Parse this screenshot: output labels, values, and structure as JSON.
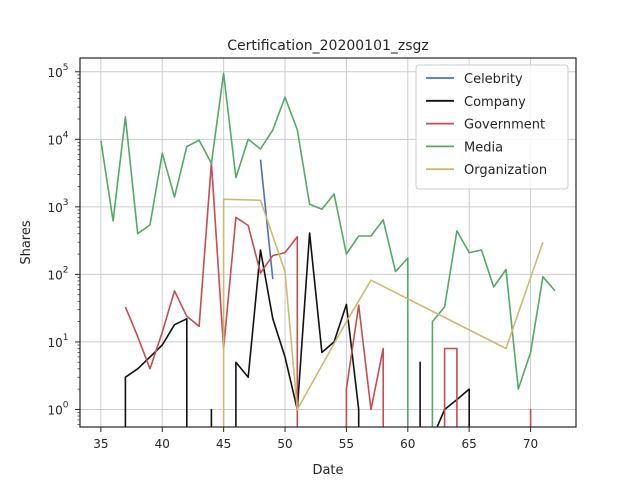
{
  "chart_data": {
    "type": "line",
    "title": "Certification_20200101_zsgz",
    "xlabel": "Date",
    "ylabel": "Shares",
    "xlim": [
      33.3,
      73.7
    ],
    "ylim": [
      0.55,
      160000
    ],
    "yscale": "log",
    "grid": true,
    "legend_position": "top-right",
    "x_ticks": [
      35,
      40,
      45,
      50,
      55,
      60,
      65,
      70
    ],
    "y_ticks": [
      {
        "value": 1,
        "base": "10",
        "exp": "0"
      },
      {
        "value": 10,
        "base": "10",
        "exp": "1"
      },
      {
        "value": 100,
        "base": "10",
        "exp": "2"
      },
      {
        "value": 1000,
        "base": "10",
        "exp": "3"
      },
      {
        "value": 10000,
        "base": "10",
        "exp": "4"
      },
      {
        "value": 100000,
        "base": "10",
        "exp": "5"
      }
    ],
    "series": [
      {
        "name": "Celebrity",
        "color": "#4c72b0",
        "points": [
          [
            48,
            5000
          ],
          [
            49,
            85
          ]
        ]
      },
      {
        "name": "Company",
        "color": "#111111",
        "points": [
          [
            37,
            0
          ],
          [
            37,
            3
          ],
          [
            38,
            4
          ],
          [
            39,
            6
          ],
          [
            40,
            9
          ],
          [
            41,
            18
          ],
          [
            42,
            22
          ],
          [
            42,
            0
          ],
          [
            44,
            0
          ],
          [
            44,
            1
          ],
          [
            44,
            0
          ],
          [
            46,
            0
          ],
          [
            46,
            5
          ],
          [
            47,
            3
          ],
          [
            48,
            230
          ],
          [
            49,
            22
          ],
          [
            50,
            6
          ],
          [
            51,
            1
          ],
          [
            52,
            410
          ],
          [
            53,
            7
          ],
          [
            54,
            10
          ],
          [
            55,
            36
          ],
          [
            56,
            1
          ],
          [
            56,
            0
          ],
          [
            61,
            0
          ],
          [
            61,
            5
          ],
          [
            61,
            0
          ],
          [
            63,
            1
          ],
          [
            64,
            1.4
          ],
          [
            65,
            2
          ],
          [
            65,
            0
          ]
        ]
      },
      {
        "name": "Government",
        "color": "#c44e52",
        "points": [
          [
            37,
            33
          ],
          [
            38,
            12
          ],
          [
            39,
            4
          ],
          [
            40,
            14
          ],
          [
            41,
            57
          ],
          [
            42,
            24
          ],
          [
            43,
            17
          ],
          [
            44,
            4500
          ],
          [
            45,
            8
          ],
          [
            46,
            700
          ],
          [
            47,
            530
          ],
          [
            48,
            105
          ],
          [
            49,
            190
          ],
          [
            50,
            210
          ],
          [
            51,
            360
          ],
          [
            51,
            0
          ],
          [
            55,
            0
          ],
          [
            55,
            2
          ],
          [
            56,
            35
          ],
          [
            57,
            1
          ],
          [
            58,
            8
          ],
          [
            58,
            0
          ],
          [
            63,
            0
          ],
          [
            63,
            8
          ],
          [
            64,
            8
          ],
          [
            64,
            0
          ],
          [
            70,
            0
          ],
          [
            70,
            1
          ],
          [
            70,
            0
          ]
        ]
      },
      {
        "name": "Media",
        "color": "#55a868",
        "points": [
          [
            35,
            9500
          ],
          [
            36,
            620
          ],
          [
            37,
            21500
          ],
          [
            38,
            400
          ],
          [
            39,
            540
          ],
          [
            40,
            6200
          ],
          [
            41,
            1400
          ],
          [
            42,
            7800
          ],
          [
            43,
            9700
          ],
          [
            44,
            4400
          ],
          [
            45,
            95000
          ],
          [
            46,
            2700
          ],
          [
            47,
            10000
          ],
          [
            48,
            7200
          ],
          [
            49,
            13800
          ],
          [
            50,
            42000
          ],
          [
            51,
            13800
          ],
          [
            52,
            1100
          ],
          [
            53,
            920
          ],
          [
            54,
            1550
          ],
          [
            55,
            200
          ],
          [
            56,
            370
          ],
          [
            57,
            370
          ],
          [
            58,
            640
          ],
          [
            59,
            110
          ],
          [
            60,
            175
          ],
          [
            60,
            0
          ],
          [
            62,
            0
          ],
          [
            62,
            20
          ],
          [
            63,
            33
          ],
          [
            64,
            440
          ],
          [
            65,
            210
          ],
          [
            66,
            230
          ],
          [
            67,
            65
          ],
          [
            68,
            118
          ],
          [
            69,
            2
          ],
          [
            70,
            7
          ],
          [
            71,
            92
          ],
          [
            72,
            57
          ]
        ]
      },
      {
        "name": "Organization",
        "color": "#ccb974",
        "points": [
          [
            45,
            0
          ],
          [
            45,
            1300
          ],
          [
            48,
            1250
          ],
          [
            50,
            110
          ],
          [
            51,
            1
          ],
          [
            55,
            20
          ],
          [
            57,
            82
          ],
          [
            68,
            8
          ],
          [
            71,
            300
          ]
        ]
      }
    ]
  }
}
